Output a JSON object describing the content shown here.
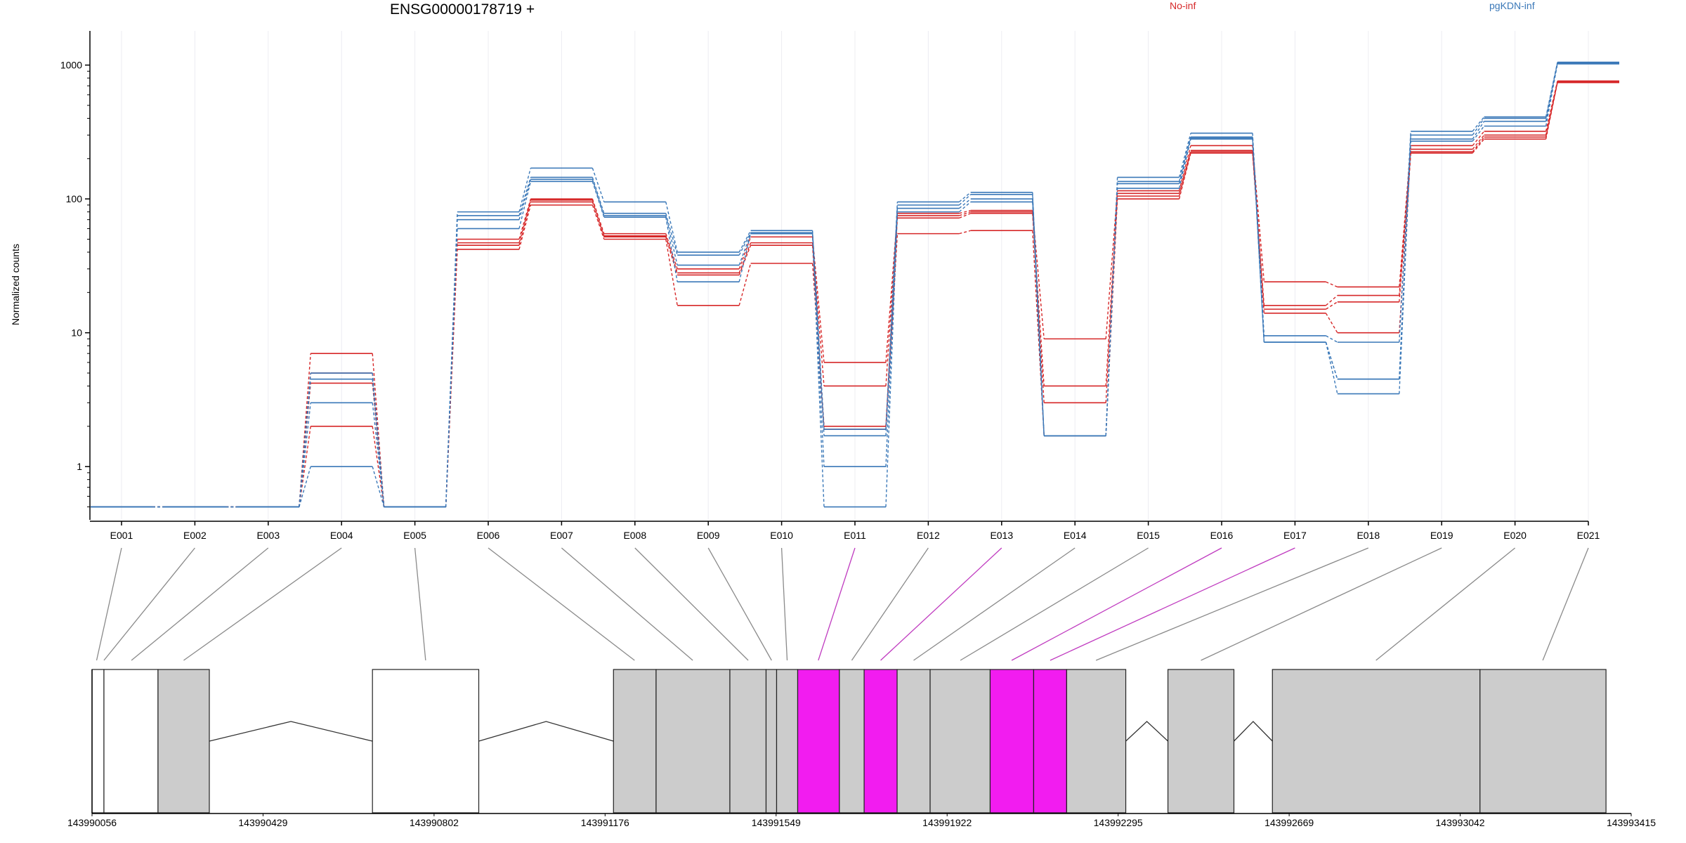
{
  "chart_data": {
    "type": "line",
    "title": "ENSG00000178719 +",
    "ylabel": "Normalized counts",
    "yscale": "log",
    "ylim": [
      0.4,
      1800
    ],
    "y_ticks": [
      1,
      10,
      100,
      1000
    ],
    "grid": "vertical",
    "legend": "top-right",
    "categories": [
      "E001",
      "E002",
      "E003",
      "E004",
      "E005",
      "E006",
      "E007",
      "E008",
      "E009",
      "E010",
      "E011",
      "E012",
      "E013",
      "E014",
      "E015",
      "E016",
      "E017",
      "E018",
      "E019",
      "E020",
      "E021"
    ],
    "groups": [
      {
        "name": "No-inf",
        "color": "#d62728"
      },
      {
        "name": "pgKDN-inf",
        "color": "#3a78b8"
      }
    ],
    "series": [
      {
        "group": "No-inf",
        "values": [
          0.5,
          0.5,
          0.5,
          7,
          0.5,
          50,
          100,
          55,
          30,
          52,
          6,
          78,
          82,
          9,
          115,
          250,
          24,
          22,
          250,
          320,
          760
        ]
      },
      {
        "group": "No-inf",
        "values": [
          0.5,
          0.5,
          0.5,
          5,
          0.5,
          47,
          98,
          53,
          28,
          47,
          4,
          75,
          80,
          4,
          110,
          230,
          16,
          19,
          235,
          300,
          750
        ]
      },
      {
        "group": "No-inf",
        "values": [
          0.5,
          0.5,
          0.5,
          4.2,
          0.5,
          45,
          95,
          52,
          27,
          45,
          2,
          72,
          78,
          3,
          105,
          225,
          15,
          17,
          225,
          290,
          745
        ]
      },
      {
        "group": "No-inf",
        "values": [
          0.5,
          0.5,
          0.5,
          2,
          0.5,
          42,
          90,
          50,
          16,
          33,
          1.9,
          55,
          58,
          1.7,
          100,
          220,
          14,
          10,
          220,
          280,
          740
        ]
      },
      {
        "group": "pgKDN-inf",
        "values": [
          0.5,
          0.5,
          0.5,
          5,
          0.5,
          80,
          170,
          95,
          40,
          58,
          1.9,
          95,
          112,
          1.7,
          145,
          310,
          9.5,
          8.5,
          320,
          410,
          1050
        ]
      },
      {
        "group": "pgKDN-inf",
        "values": [
          0.5,
          0.5,
          0.5,
          4.5,
          0.5,
          75,
          145,
          78,
          38,
          56,
          1.7,
          90,
          108,
          1.7,
          135,
          290,
          8.5,
          4.5,
          300,
          400,
          1040
        ]
      },
      {
        "group": "pgKDN-inf",
        "values": [
          0.5,
          0.5,
          0.5,
          3,
          0.5,
          70,
          140,
          75,
          32,
          55,
          1,
          85,
          100,
          1.7,
          130,
          285,
          8.5,
          4.5,
          280,
          380,
          1030
        ]
      },
      {
        "group": "pgKDN-inf",
        "values": [
          0.5,
          0.5,
          0.5,
          1,
          0.5,
          60,
          135,
          73,
          24,
          55,
          0.5,
          80,
          95,
          1.7,
          120,
          280,
          8.5,
          3.5,
          270,
          350,
          1020
        ]
      }
    ],
    "genomic_axis": {
      "tick_labels": [
        "143990056",
        "143990429",
        "143990802",
        "143991176",
        "143991549",
        "143991922",
        "143992295",
        "143992669",
        "143993042",
        "143993415"
      ],
      "start": 143990056,
      "end": 143993415
    },
    "gene_model": {
      "exons": [
        {
          "id": "E001",
          "start": 143990056,
          "end": 143990082,
          "fill": "white"
        },
        {
          "id": "E002",
          "start": 143990082,
          "end": 143990200,
          "fill": "white"
        },
        {
          "id": "E003",
          "start": 143990200,
          "end": 143990312,
          "fill": "grey"
        },
        {
          "id": "E005",
          "start": 143990668,
          "end": 143990900,
          "fill": "white"
        },
        {
          "id": "E006",
          "start": 143991194,
          "end": 143991287,
          "fill": "grey"
        },
        {
          "id": "E007",
          "start": 143991287,
          "end": 143991448,
          "fill": "grey"
        },
        {
          "id": "E008",
          "start": 143991448,
          "end": 143991527,
          "fill": "grey"
        },
        {
          "id": "E009",
          "start": 143991527,
          "end": 143991550,
          "fill": "grey"
        },
        {
          "id": "E010",
          "start": 143991550,
          "end": 143991596,
          "fill": "grey"
        },
        {
          "id": "E011",
          "start": 143991596,
          "end": 143991687,
          "fill": "magenta"
        },
        {
          "id": "E012",
          "start": 143991687,
          "end": 143991741,
          "fill": "grey"
        },
        {
          "id": "E013",
          "start": 143991741,
          "end": 143991813,
          "fill": "magenta"
        },
        {
          "id": "E014",
          "start": 143991813,
          "end": 143991885,
          "fill": "grey"
        },
        {
          "id": "E015",
          "start": 143991885,
          "end": 143992016,
          "fill": "grey"
        },
        {
          "id": "E016",
          "start": 143992016,
          "end": 143992111,
          "fill": "magenta"
        },
        {
          "id": "E017",
          "start": 143992111,
          "end": 143992183,
          "fill": "magenta"
        },
        {
          "id": "E018",
          "start": 143992183,
          "end": 143992312,
          "fill": "grey"
        },
        {
          "id": "E019",
          "start": 143992404,
          "end": 143992548,
          "fill": "grey"
        },
        {
          "id": "E020",
          "start": 143992632,
          "end": 143993085,
          "fill": "grey"
        },
        {
          "id": "E021",
          "start": 143993085,
          "end": 143993360,
          "fill": "grey"
        }
      ],
      "connector_targets": [
        {
          "exon": "E001",
          "pos": 143990066,
          "highlight": false
        },
        {
          "exon": "E002",
          "pos": 143990082,
          "highlight": false
        },
        {
          "exon": "E003",
          "pos": 143990142,
          "highlight": false
        },
        {
          "exon": "E004",
          "pos": 143990256,
          "highlight": false
        },
        {
          "exon": "E005",
          "pos": 143990784,
          "highlight": false
        },
        {
          "exon": "E006",
          "pos": 143991240,
          "highlight": false
        },
        {
          "exon": "E007",
          "pos": 143991367,
          "highlight": false
        },
        {
          "exon": "E008",
          "pos": 143991488,
          "highlight": false
        },
        {
          "exon": "E009",
          "pos": 143991539,
          "highlight": false
        },
        {
          "exon": "E010",
          "pos": 143991573,
          "highlight": false
        },
        {
          "exon": "E011",
          "pos": 143991641,
          "highlight": true
        },
        {
          "exon": "E012",
          "pos": 143991714,
          "highlight": false
        },
        {
          "exon": "E013",
          "pos": 143991777,
          "highlight": true
        },
        {
          "exon": "E014",
          "pos": 143991849,
          "highlight": false
        },
        {
          "exon": "E015",
          "pos": 143991951,
          "highlight": false
        },
        {
          "exon": "E016",
          "pos": 143992063,
          "highlight": true
        },
        {
          "exon": "E017",
          "pos": 143992147,
          "highlight": true
        },
        {
          "exon": "E018",
          "pos": 143992247,
          "highlight": false
        },
        {
          "exon": "E019",
          "pos": 143992476,
          "highlight": false
        },
        {
          "exon": "E020",
          "pos": 143992858,
          "highlight": false
        },
        {
          "exon": "E021",
          "pos": 143993222,
          "highlight": false
        }
      ],
      "introns": [
        {
          "start": 143990312,
          "end": 143990668
        },
        {
          "start": 143990900,
          "end": 143991194
        },
        {
          "start": 143992312,
          "end": 143992404
        },
        {
          "start": 143992548,
          "end": 143992632
        }
      ]
    }
  }
}
